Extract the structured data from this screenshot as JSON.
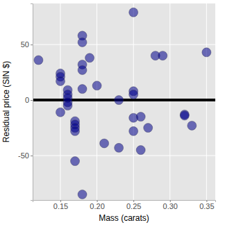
{
  "chart_data": {
    "type": "scatter",
    "x_label": "Mass (carats)",
    "y_label": "Residual price (SIN $)",
    "x": [
      0.12,
      0.15,
      0.15,
      0.15,
      0.15,
      0.16,
      0.16,
      0.16,
      0.16,
      0.16,
      0.17,
      0.17,
      0.17,
      0.17,
      0.17,
      0.18,
      0.18,
      0.18,
      0.18,
      0.18,
      0.18,
      0.19,
      0.2,
      0.21,
      0.23,
      0.23,
      0.25,
      0.25,
      0.25,
      0.25,
      0.25,
      0.26,
      0.26,
      0.27,
      0.28,
      0.29,
      0.32,
      0.32,
      0.33,
      0.35
    ],
    "y": [
      36,
      24,
      21,
      17,
      -11,
      9,
      5,
      2,
      -2,
      -5,
      -19,
      -22,
      -25,
      -28,
      -55,
      58,
      52,
      32,
      27,
      10,
      -85,
      38,
      13,
      -39,
      0,
      -43,
      79,
      8,
      5,
      -16,
      -28,
      -15,
      -45,
      -25,
      40,
      40,
      -13,
      -14,
      -23,
      43
    ],
    "color": "#00008b",
    "reference_line": 0,
    "xlim": [
      0.112,
      0.362
    ],
    "ylim": [
      -90,
      87
    ],
    "xticks": [
      0.15,
      {
        "value": 0.2,
        "label": "0.20"
      },
      0.25,
      {
        "value": 0.3,
        "label": "0.30"
      },
      0.35
    ],
    "yticks": [
      -50,
      0,
      50
    ],
    "grid": true
  }
}
